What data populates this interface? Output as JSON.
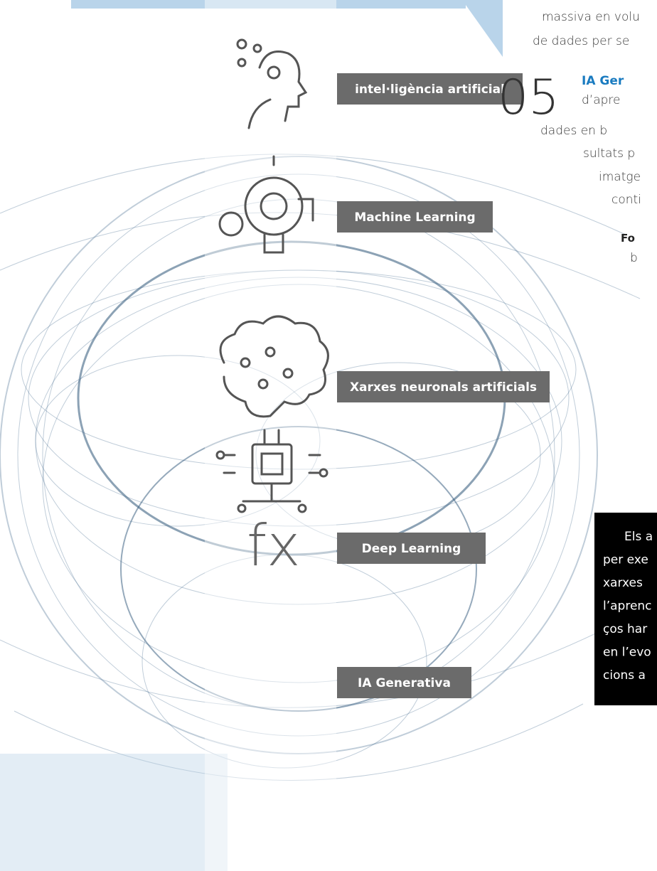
{
  "right_text": {
    "lines": [
      "massiva en volu",
      "de dades per se"
    ],
    "item": {
      "number": "05",
      "title": "IA Ger",
      "lines": [
        "d’apre",
        "dades en b",
        "sultats p",
        "imatge",
        "conti"
      ]
    },
    "source": {
      "label": "Fo",
      "text": "b"
    }
  },
  "labels": [
    "intel·ligència artificial",
    "Machine Learning",
    "Xarxes neuronals artificials",
    "Deep Learning",
    "IA Generativa"
  ],
  "fx_icon": "fx",
  "black_box": {
    "lines": [
      "Els a",
      "per exe",
      "xarxes",
      "l’aprenc",
      "ços har",
      "en l’evo",
      "cions a"
    ]
  }
}
